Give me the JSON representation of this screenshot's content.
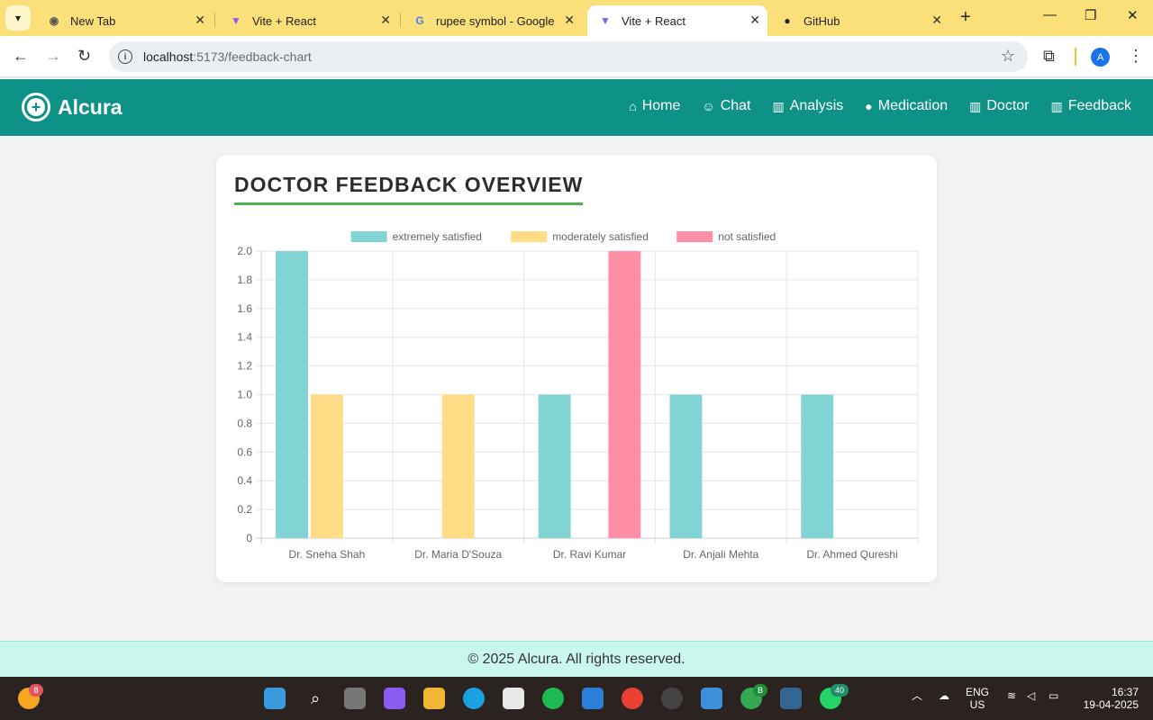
{
  "browser": {
    "tabs": [
      {
        "title": "New Tab",
        "icon": "chrome-icon"
      },
      {
        "title": "Vite + React",
        "icon": "vite-icon"
      },
      {
        "title": "rupee symbol - Google S",
        "icon": "google-icon"
      },
      {
        "title": "Vite + React",
        "icon": "vite-icon",
        "active": true
      },
      {
        "title": "GitHub",
        "icon": "github-icon"
      }
    ],
    "url_host": "localhost",
    "url_path": ":5173/feedback-chart",
    "profile_initial": "A"
  },
  "app": {
    "brand": "Alcura",
    "nav": [
      {
        "label": "Home",
        "icon": "home-icon",
        "glyph": "⌂"
      },
      {
        "label": "Chat",
        "icon": "robot-icon",
        "glyph": "☺"
      },
      {
        "label": "Analysis",
        "icon": "bar-chart-icon",
        "glyph": "▥"
      },
      {
        "label": "Medication",
        "icon": "pills-icon",
        "glyph": "●"
      },
      {
        "label": "Doctor",
        "icon": "bar-chart-icon",
        "glyph": "▥"
      },
      {
        "label": "Feedback",
        "icon": "bar-chart-icon",
        "glyph": "▥"
      }
    ],
    "accent": "#0e9186"
  },
  "card": {
    "title": "DOCTOR FEEDBACK OVERVIEW"
  },
  "chart_data": {
    "type": "bar",
    "categories": [
      "Dr. Sneha Shah",
      "Dr. Maria D'Souza",
      "Dr. Ravi Kumar",
      "Dr. Anjali Mehta",
      "Dr. Ahmed Qureshi"
    ],
    "series": [
      {
        "name": "extremely satisfied",
        "color": "#81d3d4",
        "values": [
          2,
          0,
          1,
          1,
          1
        ]
      },
      {
        "name": "moderately satisfied",
        "color": "#ffdc85",
        "values": [
          1,
          1,
          0,
          0,
          0
        ]
      },
      {
        "name": "not satisfied",
        "color": "#ff8fa4",
        "values": [
          0,
          0,
          2,
          0,
          0
        ]
      }
    ],
    "ylim": [
      0,
      2
    ],
    "yticks": [
      "0",
      "0.2",
      "0.4",
      "0.6",
      "0.8",
      "1.0",
      "1.2",
      "1.4",
      "1.6",
      "1.8",
      "2.0"
    ],
    "grid": true,
    "legend": "top-center"
  },
  "footer": {
    "text": "© 2025 Alcura. All rights reserved."
  },
  "taskbar": {
    "weather_badge": "8",
    "chrome_badge": "B",
    "whatsapp_badge": "40",
    "lang": "ENG",
    "region": "US",
    "time": "16:37",
    "date": "19-04-2025"
  }
}
